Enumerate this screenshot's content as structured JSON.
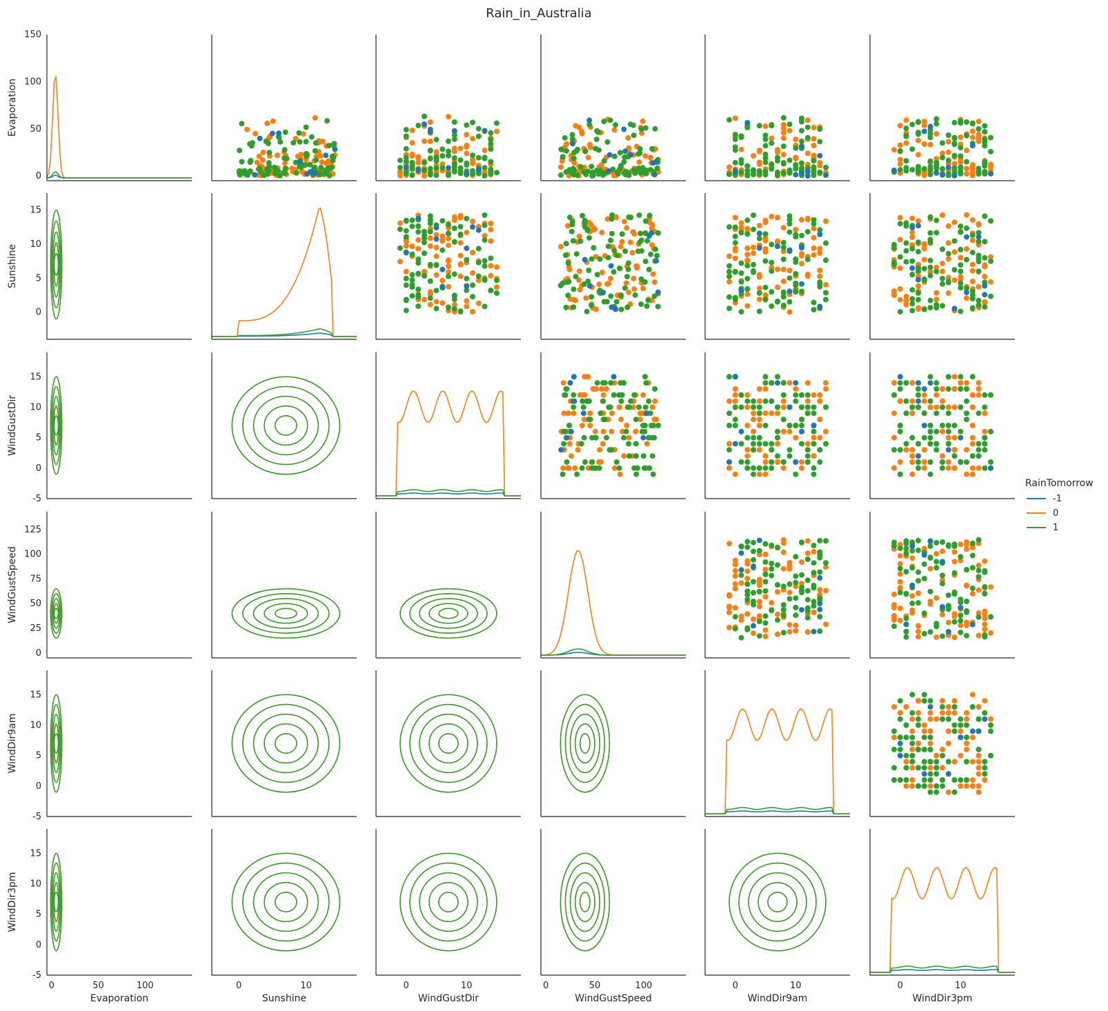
{
  "chart_data": {
    "type": "pairplot",
    "title": "Rain_in_Australia",
    "variables": [
      "Evaporation",
      "Sunshine",
      "WindGustDir",
      "WindGustSpeed",
      "WindDir9am",
      "WindDir3pm"
    ],
    "axes": {
      "Evaporation": {
        "range": [
          -5,
          150
        ],
        "ticks": [
          0,
          50,
          100,
          150
        ],
        "xticks": [
          0,
          50,
          100
        ]
      },
      "Sunshine": {
        "range": [
          -4,
          17.5
        ],
        "ticks": [
          0,
          5,
          10,
          15
        ],
        "xticks": [
          0,
          10
        ]
      },
      "WindGustDir": {
        "range": [
          -5,
          19
        ],
        "ticks": [
          -5,
          0,
          5,
          10,
          15
        ],
        "xticks": [
          0,
          10
        ]
      },
      "WindGustSpeed": {
        "range": [
          -5,
          143
        ],
        "ticks": [
          0,
          25,
          50,
          75,
          100,
          125
        ],
        "xticks": [
          0,
          50,
          100
        ]
      },
      "WindDir9am": {
        "range": [
          -5,
          19
        ],
        "ticks": [
          -5,
          0,
          5,
          10,
          15
        ],
        "xticks": [
          0,
          10
        ]
      },
      "WindDir3pm": {
        "range": [
          -5,
          19
        ],
        "ticks": [
          -5,
          0,
          5,
          10,
          15
        ],
        "xticks": [
          0,
          10
        ]
      }
    },
    "layout_notes": {
      "diagonal": "kde density per class",
      "upper": "scatter per class",
      "lower": "kde contour per class"
    },
    "hue": "RainTomorrow",
    "legend": {
      "title": "RainTomorrow",
      "entries": [
        {
          "label": "-1",
          "color": "#1f77b4"
        },
        {
          "label": "0",
          "color": "#ff7f0e"
        },
        {
          "label": "1",
          "color": "#2ca02c"
        }
      ],
      "placement": "right"
    },
    "grid": false
  }
}
